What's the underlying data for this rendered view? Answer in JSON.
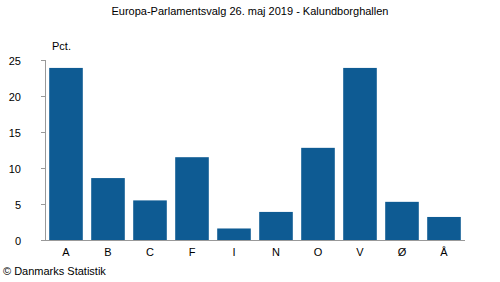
{
  "chart_data": {
    "type": "bar",
    "title": "Europa-Parlamentsvalg 26. maj 2019 - Kalundborghallen",
    "y_label": "Pct.",
    "annotations": [
      "© Danmarks Statistik"
    ],
    "categories": [
      "A",
      "B",
      "C",
      "F",
      "I",
      "N",
      "O",
      "V",
      "Ø",
      "Å"
    ],
    "values": [
      23.9,
      8.6,
      5.5,
      11.5,
      1.6,
      3.9,
      12.8,
      23.9,
      5.3,
      3.2
    ],
    "color": "#0e5b93",
    "ylim": [
      0,
      25
    ],
    "yticks": [
      0,
      5,
      10,
      15,
      20,
      25
    ],
    "grid": false
  }
}
